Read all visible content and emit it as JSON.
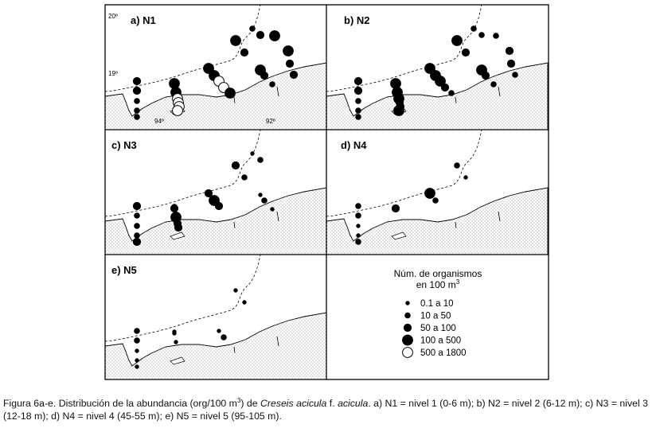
{
  "panels": [
    {
      "id": "a",
      "label": "a) N1",
      "coords": {
        "lat_top": "20º",
        "lat_mid": "19º",
        "lon_left": "94º",
        "lon_right": "92º"
      },
      "stations": [
        [
          "s1",
          "d3"
        ],
        [
          "s2",
          "d3"
        ],
        [
          "s3",
          "d2"
        ],
        [
          "s4",
          "d2"
        ],
        [
          "s5",
          "d2"
        ],
        [
          "s6",
          "d2"
        ],
        [
          "s7",
          "d2"
        ],
        [
          "s8",
          "d2"
        ],
        [
          "s9",
          "d4"
        ],
        [
          "s10",
          "d4"
        ],
        [
          "s11",
          "o"
        ],
        [
          "s12",
          "o"
        ],
        [
          "s13",
          "o"
        ],
        [
          "s14",
          "o"
        ],
        [
          "s15",
          "d4"
        ],
        [
          "s16",
          "d4"
        ],
        [
          "s17",
          "o"
        ],
        [
          "s18",
          "o"
        ],
        [
          "s19",
          "d4"
        ],
        [
          "s20",
          "d4"
        ],
        [
          "s21",
          "d3"
        ],
        [
          "s22",
          "d2"
        ],
        [
          "s23",
          "d3"
        ],
        [
          "s24",
          "d4"
        ],
        [
          "s25",
          "d3"
        ],
        [
          "s26",
          "d2"
        ],
        [
          "s27",
          "d4"
        ],
        [
          "s28",
          "d4"
        ],
        [
          "s29",
          "d3"
        ],
        [
          "s30",
          "d3"
        ]
      ]
    },
    {
      "id": "b",
      "label": "b) N2",
      "stations": [
        [
          "s1",
          "d3"
        ],
        [
          "s2",
          "d3"
        ],
        [
          "s3",
          "d2"
        ],
        [
          "s4",
          "d2"
        ],
        [
          "s5",
          "d2"
        ],
        [
          "s6",
          "d2"
        ],
        [
          "s7",
          "d1"
        ],
        [
          "s8",
          "d2"
        ],
        [
          "s9",
          "d4"
        ],
        [
          "s10",
          "d4"
        ],
        [
          "s11",
          "d4"
        ],
        [
          "s12",
          "d3"
        ],
        [
          "s13",
          "d3"
        ],
        [
          "s14",
          "d4"
        ],
        [
          "s15",
          "d4"
        ],
        [
          "s16",
          "d4"
        ],
        [
          "s17",
          "d4"
        ],
        [
          "s18",
          "d3"
        ],
        [
          "s19",
          "d2"
        ],
        [
          "s20",
          "d4"
        ],
        [
          "s21",
          "d3"
        ],
        [
          "s22",
          "d2"
        ],
        [
          "s23",
          "d2"
        ],
        [
          "s24",
          "d4"
        ],
        [
          "s25",
          "d3"
        ],
        [
          "s26",
          "d2"
        ],
        [
          "s27",
          "d2"
        ],
        [
          "s28",
          "d3"
        ],
        [
          "s29",
          "d3"
        ],
        [
          "s30",
          "d2"
        ]
      ]
    },
    {
      "id": "c",
      "label": "c) N3",
      "stations": [
        [
          "s1",
          "d3"
        ],
        [
          "s2",
          "d2"
        ],
        [
          "s3",
          "d2"
        ],
        [
          "s4",
          "d2"
        ],
        [
          "s5",
          "d3"
        ],
        [
          "s6",
          "d2"
        ],
        [
          "s8",
          "d2"
        ],
        [
          "s9",
          "d3"
        ],
        [
          "s10",
          "d4"
        ],
        [
          "s11",
          "d3"
        ],
        [
          "s12",
          "d3"
        ],
        [
          "s15",
          "d3"
        ],
        [
          "s16",
          "d4"
        ],
        [
          "s17",
          "d3"
        ],
        [
          "s20",
          "d3"
        ],
        [
          "s21",
          "d2"
        ],
        [
          "s22",
          "d1"
        ],
        [
          "s23",
          "d2"
        ],
        [
          "s24",
          "d1"
        ],
        [
          "s25",
          "d2"
        ],
        [
          "s26",
          "d1"
        ]
      ]
    },
    {
      "id": "d",
      "label": "d) N4",
      "stations": [
        [
          "s1",
          "d2"
        ],
        [
          "s2",
          "d2"
        ],
        [
          "s3",
          "d1"
        ],
        [
          "s4",
          "d1"
        ],
        [
          "s5",
          "d2"
        ],
        [
          "s6",
          "d1"
        ],
        [
          "s9",
          "d3"
        ],
        [
          "s15",
          "d4"
        ],
        [
          "s16",
          "d2"
        ],
        [
          "s20",
          "d2"
        ],
        [
          "s21",
          "d1"
        ]
      ]
    },
    {
      "id": "e",
      "label": "e) N5",
      "stations": [
        [
          "s1",
          "d2"
        ],
        [
          "s2",
          "d2"
        ],
        [
          "s3",
          "d1"
        ],
        [
          "s4",
          "d1"
        ],
        [
          "s5",
          "d1"
        ],
        [
          "s6",
          "d1"
        ],
        [
          "s9",
          "d1"
        ],
        [
          "s10",
          "d1"
        ],
        [
          "s17",
          "d1"
        ],
        [
          "s18",
          "d2"
        ],
        [
          "s20",
          "d1"
        ],
        [
          "s21",
          "d1"
        ]
      ]
    }
  ],
  "legend": {
    "title_line1": "Núm. de organismos",
    "title_line2": "en 100 m",
    "title_sup": "3",
    "items": [
      {
        "cls": "d1",
        "label": "0.1  a  10"
      },
      {
        "cls": "d2",
        "label": "10  a  50"
      },
      {
        "cls": "d3",
        "label": "50  a  100"
      },
      {
        "cls": "d4",
        "label": "100  a  500"
      },
      {
        "cls": "o",
        "label": "500  a  1800"
      }
    ]
  },
  "caption": {
    "p1": "Figura 6a-e. Distribución de la abundancia (org/100 m",
    "sup": "3",
    "p2": ") de ",
    "species": "Creseis acicula",
    "p3": " f. ",
    "form": "acicula",
    "p4": ". a) N1 = nivel 1 (0-6 m); b) N2 = nivel 2 (6-12 m); c) N3 = nivel 3 (12-18 m); d) N4 = nivel 4 (45-55 m); e) N5 = nivel 5 (95-105 m)."
  }
}
